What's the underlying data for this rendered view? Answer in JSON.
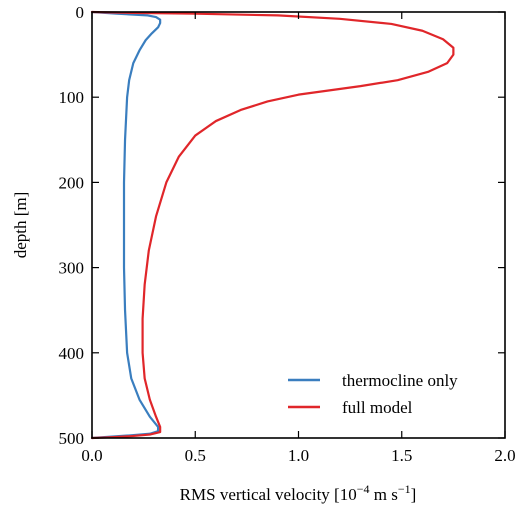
{
  "chart_data": {
    "type": "line",
    "title": "",
    "xlabel": "RMS vertical velocity [10",
    "xlabel_exponent": "−4",
    "xlabel_units": " m s",
    "xlabel_units_exponent": "−1",
    "xlabel_close": "]",
    "ylabel": "depth [m]",
    "xlim": [
      0.0,
      2.0
    ],
    "ylim": [
      500,
      0
    ],
    "y_inverted": true,
    "xticks": [
      0.0,
      0.5,
      1.0,
      1.5,
      2.0
    ],
    "xtick_labels": [
      "0.0",
      "0.5",
      "1.0",
      "1.5",
      "2.0"
    ],
    "yticks": [
      0,
      100,
      200,
      300,
      400,
      500
    ],
    "ytick_labels": [
      "0",
      "100",
      "200",
      "300",
      "400",
      "500"
    ],
    "grid": false,
    "legend_position": "lower-right",
    "series": [
      {
        "name": "thermocline only",
        "color": "#3a7ebf",
        "points": [
          [
            0.0,
            0
          ],
          [
            0.12,
            2
          ],
          [
            0.27,
            4
          ],
          [
            0.31,
            6
          ],
          [
            0.33,
            9
          ],
          [
            0.33,
            13
          ],
          [
            0.32,
            18
          ],
          [
            0.29,
            25
          ],
          [
            0.26,
            33
          ],
          [
            0.23,
            45
          ],
          [
            0.2,
            60
          ],
          [
            0.18,
            80
          ],
          [
            0.17,
            100
          ],
          [
            0.16,
            150
          ],
          [
            0.155,
            200
          ],
          [
            0.155,
            250
          ],
          [
            0.155,
            300
          ],
          [
            0.16,
            350
          ],
          [
            0.17,
            400
          ],
          [
            0.19,
            430
          ],
          [
            0.23,
            455
          ],
          [
            0.28,
            475
          ],
          [
            0.32,
            487
          ],
          [
            0.32,
            492
          ],
          [
            0.28,
            495
          ],
          [
            0.18,
            497
          ],
          [
            0.06,
            499
          ],
          [
            0.0,
            500
          ]
        ]
      },
      {
        "name": "full model",
        "color": "#e0262a",
        "points": [
          [
            0.0,
            0
          ],
          [
            0.2,
            1
          ],
          [
            0.5,
            2
          ],
          [
            0.9,
            4
          ],
          [
            1.2,
            8
          ],
          [
            1.45,
            14
          ],
          [
            1.6,
            22
          ],
          [
            1.7,
            32
          ],
          [
            1.75,
            42
          ],
          [
            1.75,
            50
          ],
          [
            1.72,
            60
          ],
          [
            1.63,
            70
          ],
          [
            1.48,
            80
          ],
          [
            1.3,
            87
          ],
          [
            1.15,
            92
          ],
          [
            1.0,
            97
          ],
          [
            0.85,
            105
          ],
          [
            0.72,
            115
          ],
          [
            0.6,
            128
          ],
          [
            0.5,
            145
          ],
          [
            0.42,
            170
          ],
          [
            0.36,
            200
          ],
          [
            0.31,
            240
          ],
          [
            0.275,
            280
          ],
          [
            0.255,
            320
          ],
          [
            0.245,
            360
          ],
          [
            0.245,
            400
          ],
          [
            0.255,
            430
          ],
          [
            0.28,
            455
          ],
          [
            0.31,
            475
          ],
          [
            0.33,
            487
          ],
          [
            0.33,
            493
          ],
          [
            0.28,
            496
          ],
          [
            0.18,
            498
          ],
          [
            0.06,
            499.5
          ],
          [
            0.0,
            500
          ]
        ]
      }
    ]
  }
}
